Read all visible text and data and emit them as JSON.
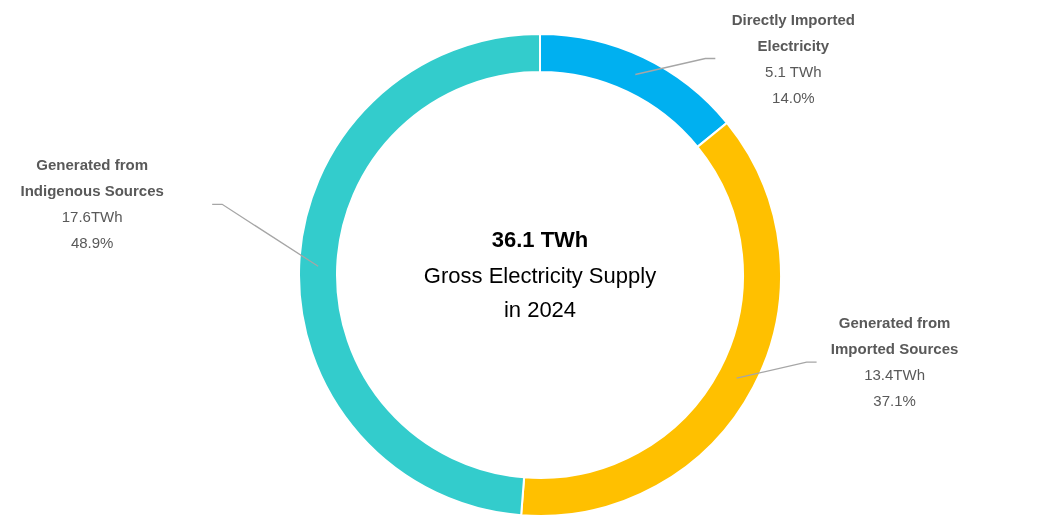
{
  "chart_data": {
    "type": "donut",
    "title": "36.1 TWh",
    "subtitle": "Gross Electricity Supply in 2024",
    "categories": [
      "Directly Imported Electricity",
      "Generated from Imported Sources",
      "Generated from Indigenous Sources"
    ],
    "values": [
      5.1,
      13.4,
      17.6
    ],
    "value_labels": [
      "5.1 TWh",
      "13.4TWh",
      "17.6TWh"
    ],
    "annotations": [
      "14.0%",
      "37.1%",
      "48.9%"
    ],
    "colors": [
      "#00b0f0",
      "#ffc000",
      "#33cccc"
    ]
  }
}
